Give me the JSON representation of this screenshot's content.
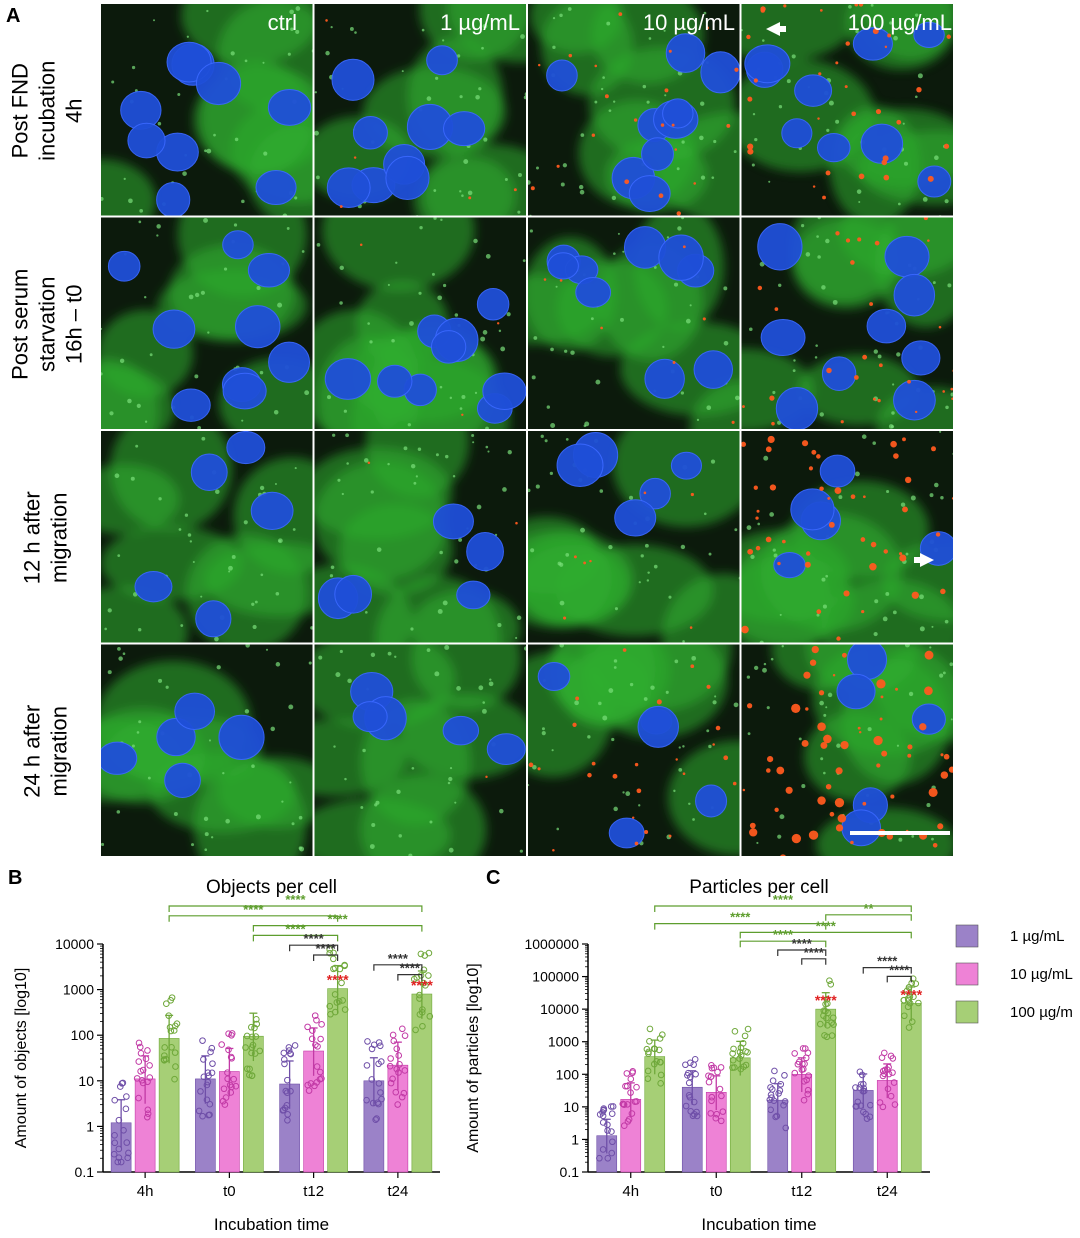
{
  "panel_a": {
    "label": "A",
    "columns": [
      "ctrl",
      "1 µg/mL",
      "10 µg/mL",
      "100 µg/mL"
    ],
    "rows": [
      {
        "lines": [
          "Post FND",
          "incubation",
          "4h"
        ]
      },
      {
        "lines": [
          "Post serum",
          "starvation",
          "16h – t0"
        ]
      },
      {
        "lines": [
          "12 h after",
          "migration"
        ]
      },
      {
        "lines": [
          "24 h after",
          "migration"
        ]
      }
    ],
    "red_intensity": [
      [
        0,
        0.08,
        0.35,
        0.55
      ],
      [
        0,
        0.05,
        0.12,
        0.45
      ],
      [
        0,
        0.03,
        0.12,
        0.75
      ],
      [
        0,
        0.02,
        0.4,
        1.0
      ]
    ],
    "colors": {
      "nuclei": "#1f4fd8",
      "cytoskeleton": "#2fae2f",
      "particles": "#ff5a1f",
      "background": "#0c1a0c"
    }
  },
  "legend": {
    "entries": [
      {
        "label": "1 µg/mL",
        "color": "#9b82c8"
      },
      {
        "label": "10 µg/mL",
        "color": "#ee82d6"
      },
      {
        "label": "100 µg/m",
        "color": "#a6cf76"
      }
    ]
  },
  "chart_data": [
    {
      "panel": "B",
      "type": "bar",
      "title": "Objects per cell",
      "xlabel": "Incubation time",
      "ylabel": "Amount of objects [log10]",
      "yscale": "log",
      "ylim": [
        0.1,
        10000
      ],
      "yticks": [
        "0.1",
        "1",
        "10",
        "100",
        "1000",
        "10000"
      ],
      "categories": [
        "4h",
        "t0",
        "t12",
        "t24"
      ],
      "series": [
        {
          "name": "1 µg/mL",
          "values": [
            1.2,
            11,
            8.5,
            10
          ]
        },
        {
          "name": "10 µg/mL",
          "values": [
            11,
            16,
            45,
            22
          ]
        },
        {
          "name": "100 µg/m",
          "values": [
            85,
            95,
            1050,
            800
          ]
        }
      ],
      "significance": [
        {
          "from": [
            0,
            2
          ],
          "to": [
            3,
            2
          ],
          "label": "****",
          "color": "green"
        },
        {
          "from": [
            0,
            2
          ],
          "to": [
            2,
            2
          ],
          "label": "****",
          "color": "green"
        },
        {
          "from": [
            1,
            2
          ],
          "to": [
            3,
            2
          ],
          "label": "****",
          "color": "green"
        },
        {
          "from": [
            1,
            2
          ],
          "to": [
            2,
            2
          ],
          "label": "****",
          "color": "green"
        },
        {
          "from": [
            2,
            0
          ],
          "to": [
            2,
            2
          ],
          "label": "****",
          "color": "black"
        },
        {
          "from": [
            2,
            1
          ],
          "to": [
            2,
            2
          ],
          "label": "****",
          "color": "black"
        },
        {
          "from": [
            3,
            0
          ],
          "to": [
            3,
            2
          ],
          "label": "****",
          "color": "black"
        },
        {
          "from": [
            3,
            1
          ],
          "to": [
            3,
            2
          ],
          "label": "****",
          "color": "black"
        }
      ],
      "star_labels": [
        {
          "at": [
            2,
            2
          ],
          "label": "****",
          "color": "red"
        },
        {
          "at": [
            3,
            2
          ],
          "label": "****",
          "color": "red"
        }
      ]
    },
    {
      "panel": "C",
      "type": "bar",
      "title": "Particles per cell",
      "xlabel": "Incubation time",
      "ylabel": "Amount of particles [log10]",
      "yscale": "log",
      "ylim": [
        0.1,
        1000000
      ],
      "yticks": [
        "0.1",
        "1",
        "10",
        "100",
        "1000",
        "10000",
        "100000",
        "1000000"
      ],
      "categories": [
        "4h",
        "t0",
        "t12",
        "t24"
      ],
      "series": [
        {
          "name": "1 µg/mL",
          "values": [
            1.3,
            40,
            16,
            32
          ]
        },
        {
          "name": "10 µg/mL",
          "values": [
            17,
            28,
            100,
            65
          ]
        },
        {
          "name": "100 µg/m",
          "values": [
            350,
            320,
            10000,
            15000
          ]
        }
      ],
      "significance": [
        {
          "from": [
            0,
            2
          ],
          "to": [
            3,
            2
          ],
          "label": "****",
          "color": "green"
        },
        {
          "from": [
            2,
            2
          ],
          "to": [
            3,
            2
          ],
          "label": "**",
          "color": "green"
        },
        {
          "from": [
            0,
            2
          ],
          "to": [
            2,
            2
          ],
          "label": "****",
          "color": "green"
        },
        {
          "from": [
            1,
            2
          ],
          "to": [
            3,
            2
          ],
          "label": "****",
          "color": "green"
        },
        {
          "from": [
            1,
            2
          ],
          "to": [
            2,
            2
          ],
          "label": "****",
          "color": "green"
        },
        {
          "from": [
            2,
            0
          ],
          "to": [
            2,
            2
          ],
          "label": "****",
          "color": "black"
        },
        {
          "from": [
            2,
            1
          ],
          "to": [
            2,
            2
          ],
          "label": "****",
          "color": "black"
        },
        {
          "from": [
            3,
            0
          ],
          "to": [
            3,
            2
          ],
          "label": "****",
          "color": "black"
        },
        {
          "from": [
            3,
            1
          ],
          "to": [
            3,
            2
          ],
          "label": "****",
          "color": "black"
        }
      ],
      "star_labels": [
        {
          "at": [
            2,
            2
          ],
          "label": "****",
          "color": "red"
        },
        {
          "at": [
            3,
            2
          ],
          "label": "****",
          "color": "red"
        }
      ]
    }
  ]
}
